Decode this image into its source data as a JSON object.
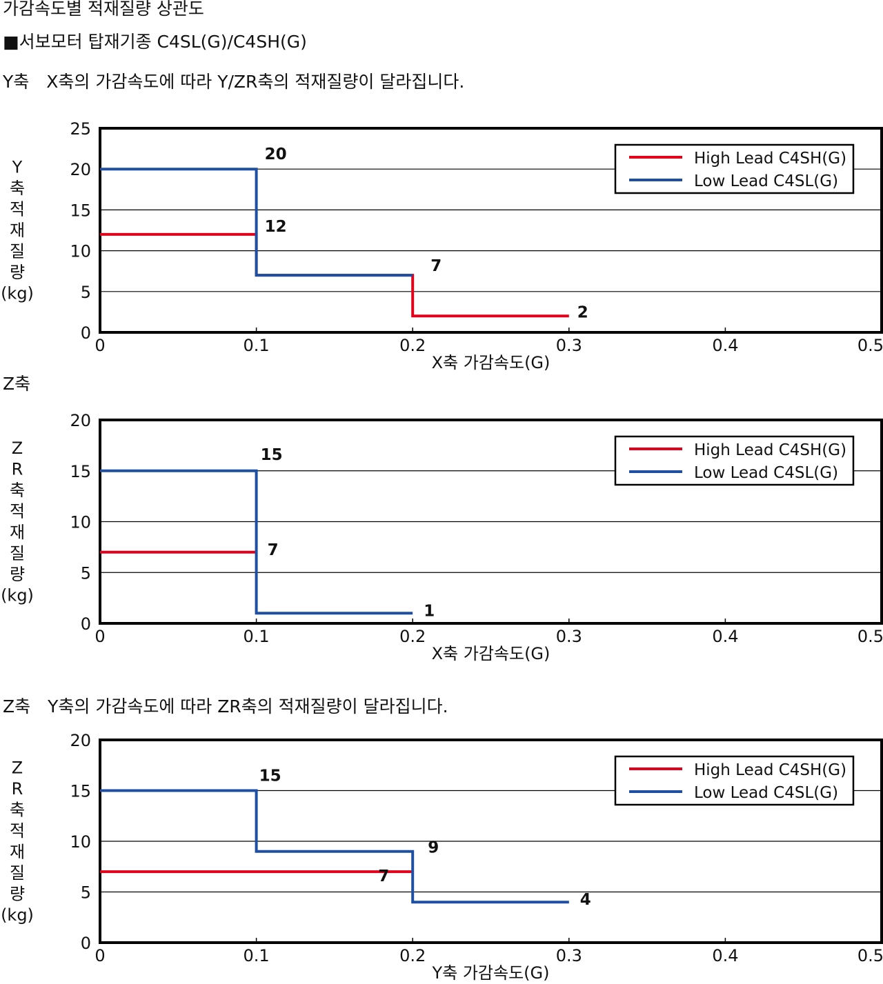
{
  "page": {
    "title": "가감속도별 적재질량 상관도",
    "subtitle": "■서보모터 탑재기종 C4SL(G)/C4SH(G)",
    "notes": [
      "Y축　X축의 가감속도에 따라 Y/ZR축의 적재질량이 달라집니다.",
      "Z축",
      "Z축　Y축의 가감속도에 따라 ZR축의 적재질량이 달라집니다."
    ]
  },
  "colors": {
    "high_lead": "#e3001b",
    "low_lead": "#1f4fa3",
    "axis": "#000000",
    "grid": "#000000"
  },
  "chart_data": [
    {
      "type": "line",
      "step": true,
      "xlabel": "X축 가감속도(G)",
      "ylabel": "Y축적재질량(kg)",
      "xlim": [
        0,
        0.5
      ],
      "ylim": [
        0,
        25
      ],
      "xticks": [
        "0",
        "0.1",
        "0.2",
        "0.3",
        "0.4",
        "0.5"
      ],
      "yticks": [
        "0",
        "5",
        "10",
        "15",
        "20",
        "25"
      ],
      "grid": true,
      "legend": "top-right",
      "series": [
        {
          "name": "High Lead C4SH(G)",
          "color": "#e3001b",
          "x": [
            0,
            0.1,
            0.1,
            0.2,
            0.2,
            0.3
          ],
          "y": [
            12,
            12,
            7,
            7,
            2,
            2
          ]
        },
        {
          "name": "Low Lead C4SL(G)",
          "color": "#1f4fa3",
          "x": [
            0,
            0.1,
            0.1,
            0.2
          ],
          "y": [
            20,
            20,
            7,
            7
          ]
        }
      ],
      "labels": [
        {
          "text": "20",
          "x": 0.1,
          "y": 20
        },
        {
          "text": "12",
          "x": 0.1,
          "y": 12
        },
        {
          "text": "7",
          "x": 0.2,
          "y": 7
        },
        {
          "text": "2",
          "x": 0.3,
          "y": 2
        }
      ]
    },
    {
      "type": "line",
      "step": true,
      "xlabel": "X축 가감속도(G)",
      "ylabel": "ZR축적재질량(kg)",
      "xlim": [
        0,
        0.5
      ],
      "ylim": [
        0,
        20
      ],
      "xticks": [
        "0",
        "0.1",
        "0.2",
        "0.3",
        "0.4",
        "0.5"
      ],
      "yticks": [
        "0",
        "5",
        "10",
        "15",
        "20"
      ],
      "grid": true,
      "legend": "top-right",
      "series": [
        {
          "name": "High Lead C4SH(G)",
          "color": "#e3001b",
          "x": [
            0,
            0.1
          ],
          "y": [
            7,
            7
          ]
        },
        {
          "name": "Low Lead C4SL(G)",
          "color": "#1f4fa3",
          "x": [
            0,
            0.1,
            0.1,
            0.2
          ],
          "y": [
            15,
            15,
            1,
            1
          ]
        }
      ],
      "labels": [
        {
          "text": "15",
          "x": 0.1,
          "y": 15
        },
        {
          "text": "7",
          "x": 0.1,
          "y": 7
        },
        {
          "text": "1",
          "x": 0.2,
          "y": 1
        }
      ]
    },
    {
      "type": "line",
      "step": true,
      "xlabel": "Y축 가감속도(G)",
      "ylabel": "ZR축적재질량(kg)",
      "xlim": [
        0,
        0.5
      ],
      "ylim": [
        0,
        20
      ],
      "xticks": [
        "0",
        "0.1",
        "0.2",
        "0.3",
        "0.4",
        "0.5"
      ],
      "yticks": [
        "0",
        "5",
        "10",
        "15",
        "20"
      ],
      "grid": true,
      "legend": "top-right",
      "series": [
        {
          "name": "High Lead C4SH(G)",
          "color": "#e3001b",
          "x": [
            0,
            0.2
          ],
          "y": [
            7,
            7
          ]
        },
        {
          "name": "Low Lead C4SL(G)",
          "color": "#1f4fa3",
          "x": [
            0,
            0.1,
            0.1,
            0.2,
            0.2,
            0.3
          ],
          "y": [
            15,
            15,
            9,
            9,
            4,
            4
          ]
        }
      ],
      "labels": [
        {
          "text": "15",
          "x": 0.1,
          "y": 15
        },
        {
          "text": "9",
          "x": 0.2,
          "y": 9
        },
        {
          "text": "7",
          "x": 0.2,
          "y": 7
        },
        {
          "text": "4",
          "x": 0.3,
          "y": 4
        }
      ]
    }
  ]
}
